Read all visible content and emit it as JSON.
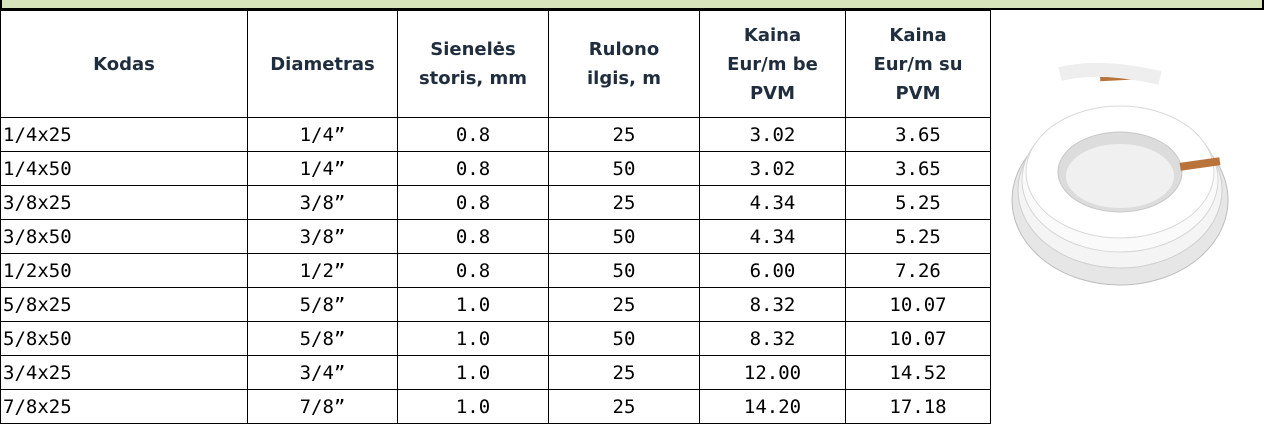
{
  "table": {
    "header": [
      [
        "Kodas"
      ],
      [
        "Diametras"
      ],
      [
        "Sienelės",
        "storis, mm"
      ],
      [
        "Rulono",
        "ilgis, m"
      ],
      [
        "Kaina",
        "Eur/m be",
        "PVM"
      ],
      [
        "Kaina",
        "Eur/m su",
        "PVM"
      ]
    ],
    "rows": [
      [
        "1/4x25",
        "1/4”",
        "0.8",
        "25",
        "3.02",
        "3.65"
      ],
      [
        "1/4x50",
        "1/4”",
        "0.8",
        "50",
        "3.02",
        "3.65"
      ],
      [
        "3/8x25",
        "3/8”",
        "0.8",
        "25",
        "4.34",
        "5.25"
      ],
      [
        "3/8x50",
        "3/8”",
        "0.8",
        "50",
        "4.34",
        "5.25"
      ],
      [
        "1/2x50",
        "1/2”",
        "0.8",
        "50",
        "6.00",
        "7.26"
      ],
      [
        "5/8x25",
        "5/8”",
        "1.0",
        "25",
        "8.32",
        "10.07"
      ],
      [
        "5/8x50",
        "5/8”",
        "1.0",
        "50",
        "8.32",
        "10.07"
      ],
      [
        "3/4x25",
        "3/4”",
        "1.0",
        "25",
        "12.00",
        "14.52"
      ],
      [
        "7/8x25",
        "7/8”",
        "1.0",
        "25",
        "14.20",
        "17.18"
      ]
    ]
  }
}
